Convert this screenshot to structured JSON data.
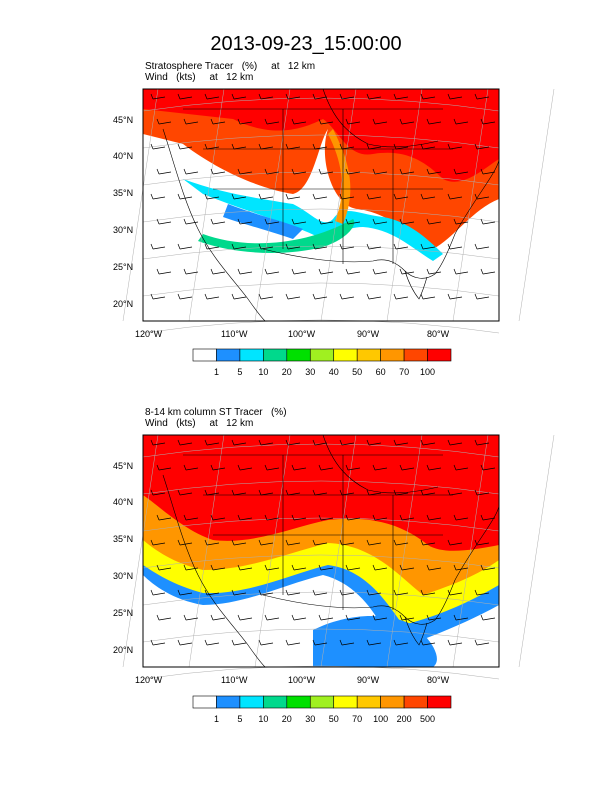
{
  "title": "2013-09-23_15:00:00",
  "panels": [
    {
      "subtitle_line1": "Stratosphere Tracer   (%)     at   12 km",
      "subtitle_line2": "Wind   (kts)     at   12 km",
      "lat_ticks": [
        "45°N",
        "40°N",
        "35°N",
        "30°N",
        "25°N",
        "20°N"
      ],
      "lon_ticks": [
        "120°W",
        "110°W",
        "100°W",
        "90°W",
        "80°W"
      ],
      "colorbar_labels": [
        "1",
        "5",
        "10",
        "20",
        "30",
        "40",
        "50",
        "60",
        "70",
        "100"
      ],
      "colorbar_colors": [
        "#ffffff",
        "#1e90ff",
        "#00e5ff",
        "#00d98c",
        "#00e000",
        "#a0f020",
        "#ffff00",
        "#ffc800",
        "#ff9600",
        "#ff4600",
        "#ff0000"
      ]
    },
    {
      "subtitle_line1": "8-14 km column ST Tracer   (%)",
      "subtitle_line2": "Wind   (kts)     at   12 km",
      "lat_ticks": [
        "45°N",
        "40°N",
        "35°N",
        "30°N",
        "25°N",
        "20°N"
      ],
      "lon_ticks": [
        "120°W",
        "110°W",
        "100°W",
        "90°W",
        "80°W"
      ],
      "colorbar_labels": [
        "1",
        "5",
        "10",
        "20",
        "30",
        "50",
        "70",
        "100",
        "200",
        "500"
      ],
      "colorbar_colors": [
        "#ffffff",
        "#1e90ff",
        "#00e5ff",
        "#00d98c",
        "#00e000",
        "#a0f020",
        "#ffff00",
        "#ffc800",
        "#ff9600",
        "#ff4600",
        "#ff0000"
      ]
    }
  ]
}
